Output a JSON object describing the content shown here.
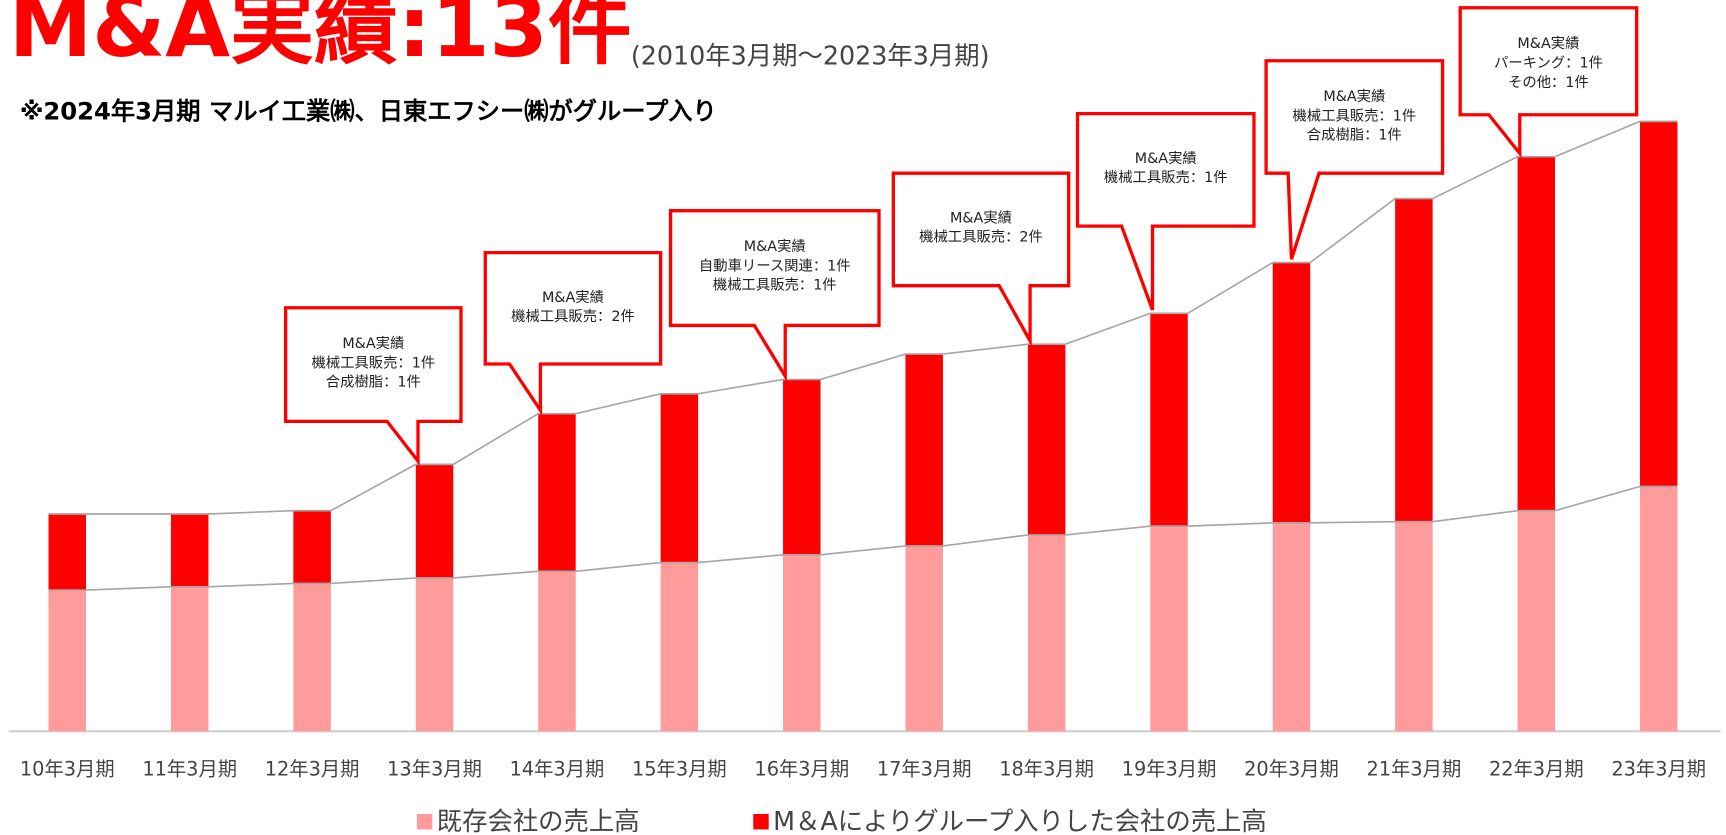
{
  "chart_data": {
    "type": "stacked_bar",
    "title": "M&A実績:13件",
    "subtitle": "(2010年3月期～2023年3月期)",
    "note": "※2024年3月期  マルイ工業㈱、日東エフシー㈱がグループ入り",
    "categories": [
      "10年3月期",
      "11年3月期",
      "12年3月期",
      "13年3月期",
      "14年3月期",
      "15年3月期",
      "16年3月期",
      "17年3月期",
      "18年3月期",
      "19年3月期",
      "20年3月期",
      "21年3月期",
      "22年3月期",
      "23年3月期"
    ],
    "series": [
      {
        "name": "既存会社の売上高",
        "color": "#ff9b9b",
        "values": [
          128,
          131,
          134,
          139,
          145,
          153,
          160,
          168,
          178,
          186,
          189,
          190,
          200,
          222
        ]
      },
      {
        "name": "M＆Aによりグループ入りした会社の売上高",
        "color": "#ff0000",
        "values": [
          69,
          66,
          66,
          103,
          143,
          153,
          159,
          174,
          173,
          193,
          236,
          293,
          321,
          331
        ]
      }
    ],
    "ylim": [
      0,
      600
    ],
    "callouts": [
      {
        "category": "13年3月期",
        "lines": [
          "M&A実績",
          "機械工具販売：1件",
          "合成樹脂：1件"
        ]
      },
      {
        "category": "14年3月期",
        "lines": [
          "M&A実績",
          "機械工具販売：2件"
        ]
      },
      {
        "category": "16年3月期",
        "lines": [
          "M&A実績",
          "自動車リース関連：1件",
          "機械工具販売：1件"
        ]
      },
      {
        "category": "18年3月期",
        "lines": [
          "M&A実績",
          "機械工具販売：2件"
        ]
      },
      {
        "category": "19年3月期",
        "lines": [
          "M&A実績",
          "機械工具販売：1件"
        ]
      },
      {
        "category": "20年3月期",
        "lines": [
          "M&A実績",
          "機械工具販売：1件",
          "合成樹脂：1件"
        ]
      },
      {
        "category": "22年3月期",
        "lines": [
          "M&A実績",
          "パーキング：1件",
          "その他：1件"
        ]
      }
    ]
  }
}
